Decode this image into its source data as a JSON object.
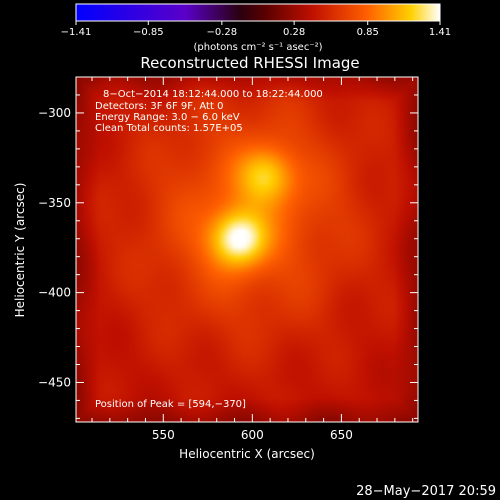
{
  "chart_data": {
    "type": "heatmap",
    "title": "Reconstructed RHESSI Image",
    "xlabel": "Heliocentric X (arcsec)",
    "ylabel": "Heliocentric Y (arcsec)",
    "xlim": [
      501,
      693
    ],
    "ylim": [
      -472,
      -280
    ],
    "x_ticks": [
      550,
      600,
      650
    ],
    "y_ticks": [
      -300,
      -350,
      -400,
      -450
    ],
    "x_tick_labels": [
      "550",
      "600",
      "650"
    ],
    "y_tick_labels": [
      "−300",
      "−350",
      "−400",
      "−450"
    ],
    "colorbar": {
      "min": -1.41,
      "max": 1.41,
      "ticks": [
        -1.41,
        -0.85,
        -0.28,
        0.28,
        0.85,
        1.41
      ],
      "tick_labels": [
        "−1.41",
        "−0.85",
        "−0.28",
        "0.28",
        "0.85",
        "1.41"
      ],
      "units_label": "(photons cm⁻² s⁻¹ asec⁻²)",
      "colormap": "blue-purple-red-yellow-white"
    },
    "info_lines": [
      "8−Oct−2014 18:12:44.000 to 18:22:44.000",
      "Detectors: 3F 6F 9F, Att 0",
      "Energy Range: 3.0 − 6.0 keV",
      "Clean    Total counts: 1.57E+05"
    ],
    "peak_label": "Position of Peak = [594,−370]",
    "sources": [
      {
        "x": 592,
        "y": -370,
        "peak": 1.41
      },
      {
        "x": 608,
        "y": -335,
        "peak": 0.95
      }
    ]
  },
  "footer_date": "28−May−2017 20:59"
}
